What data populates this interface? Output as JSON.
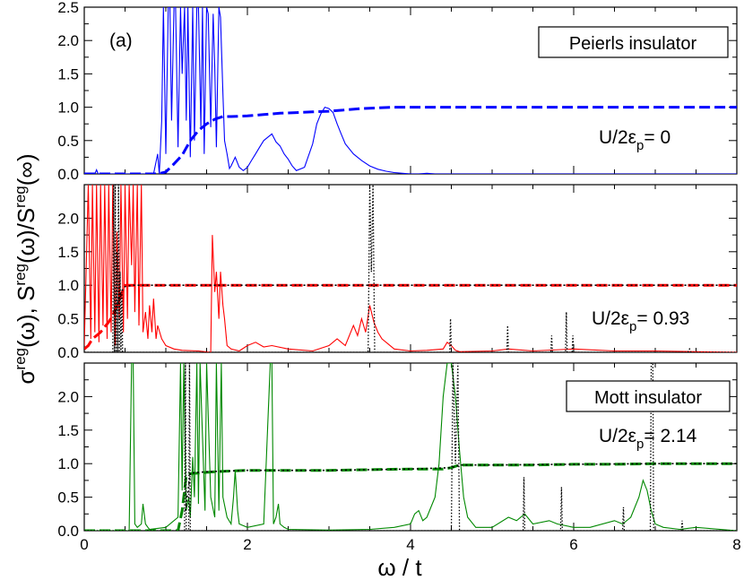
{
  "panel_tag": "(a)",
  "x_axis_label": "ω / t",
  "y_axis_label_parts": {
    "sigma": "σ",
    "reg1": "reg",
    "omega1": "(ω), S",
    "reg2": "reg",
    "omega2": "(ω)/S",
    "reg3": "reg",
    "inf": "(∞)"
  },
  "colors": {
    "panel1": "#0000ff",
    "panel2": "#ff0000",
    "panel3": "#008800",
    "reference": "#000000"
  },
  "chart_data": [
    {
      "type": "line",
      "title": "",
      "legend_box": "Peierls insulator",
      "annotation": {
        "prefix": "U/2ε",
        "sub": "p",
        "suffix": "= 0"
      },
      "xlim": [
        0,
        8
      ],
      "ylim": [
        0,
        2.5
      ],
      "x_ticks": [
        "0",
        "2",
        "4",
        "6",
        "8"
      ],
      "y_ticks": [
        "0.0",
        "0.5",
        "1.0",
        "1.5",
        "2.0",
        "2.5"
      ],
      "series": [
        {
          "style": "solid",
          "color": "#0000ff",
          "x": [
            0,
            0.13,
            0.15,
            0.17,
            0.5,
            0.85,
            0.9,
            0.92,
            0.95,
            0.97,
            1.0,
            1.03,
            1.05,
            1.07,
            1.1,
            1.12,
            1.15,
            1.18,
            1.2,
            1.23,
            1.25,
            1.27,
            1.3,
            1.33,
            1.35,
            1.38,
            1.4,
            1.43,
            1.45,
            1.47,
            1.5,
            1.52,
            1.55,
            1.58,
            1.6,
            1.62,
            1.65,
            1.67,
            1.7,
            1.72,
            1.75,
            1.78,
            1.8,
            1.85,
            1.9,
            1.95,
            2.0,
            2.05,
            2.1,
            2.15,
            2.2,
            2.25,
            2.3,
            2.35,
            2.4,
            2.45,
            2.5,
            2.55,
            2.6,
            2.7,
            2.8,
            2.85,
            2.9,
            2.95,
            3.0,
            3.05,
            3.1,
            3.15,
            3.2,
            3.3,
            3.4,
            3.5,
            3.6,
            3.7,
            3.8,
            3.9,
            4.0,
            4.1,
            4.2,
            4.3,
            4.5,
            4.8,
            8
          ],
          "y": [
            0,
            0,
            0.06,
            0,
            0,
            0,
            0.3,
            0,
            0.8,
            2.5,
            0.3,
            2.5,
            2.5,
            0.8,
            2.5,
            2.5,
            0.4,
            2.5,
            1.5,
            2.5,
            0.8,
            2.5,
            0.25,
            2.5,
            0.5,
            2.5,
            2.5,
            0.7,
            2.5,
            0.3,
            2.5,
            2.4,
            0.7,
            2.4,
            1.6,
            0.4,
            2.5,
            2.35,
            1.2,
            0.5,
            0.3,
            0.08,
            0.12,
            0.25,
            0.1,
            0.05,
            0.1,
            0.2,
            0.3,
            0.4,
            0.5,
            0.55,
            0.6,
            0.48,
            0.42,
            0.3,
            0.22,
            0.12,
            0.05,
            0.1,
            0.45,
            0.75,
            0.9,
            1.0,
            0.98,
            0.92,
            0.75,
            0.6,
            0.45,
            0.3,
            0.2,
            0.12,
            0.07,
            0.04,
            0.02,
            0.01,
            0,
            0,
            0.01,
            0,
            0,
            0,
            0
          ]
        },
        {
          "style": "dashed",
          "color": "#0000ff",
          "x": [
            0,
            0.9,
            1.0,
            1.1,
            1.2,
            1.3,
            1.4,
            1.5,
            1.6,
            1.7,
            1.8,
            2.0,
            2.2,
            2.4,
            2.6,
            2.8,
            3.0,
            3.2,
            3.4,
            3.6,
            3.8,
            4.0,
            5.0,
            6.0,
            7.0,
            8.0
          ],
          "y": [
            0,
            0,
            0.03,
            0.15,
            0.28,
            0.5,
            0.65,
            0.75,
            0.82,
            0.86,
            0.86,
            0.87,
            0.89,
            0.91,
            0.92,
            0.93,
            0.94,
            0.96,
            0.98,
            0.99,
            1.0,
            1.0,
            1.0,
            1.0,
            1.0,
            1.0
          ]
        }
      ]
    },
    {
      "type": "line",
      "title": "",
      "annotation": {
        "prefix": "U/2ε",
        "sub": "p",
        "suffix": "= 0.93"
      },
      "xlim": [
        0,
        8
      ],
      "ylim": [
        0,
        2.5
      ],
      "x_ticks": [
        "0",
        "2",
        "4",
        "6",
        "8"
      ],
      "y_ticks": [
        "0.0",
        "0.5",
        "1.0",
        "1.5",
        "2.0"
      ],
      "series": [
        {
          "style": "solid",
          "color": "#ff0000",
          "x": [
            0,
            0.05,
            0.08,
            0.1,
            0.13,
            0.15,
            0.18,
            0.2,
            0.23,
            0.25,
            0.28,
            0.3,
            0.33,
            0.35,
            0.38,
            0.4,
            0.43,
            0.45,
            0.48,
            0.5,
            0.53,
            0.55,
            0.58,
            0.6,
            0.62,
            0.65,
            0.67,
            0.7,
            0.72,
            0.75,
            0.78,
            0.8,
            0.83,
            0.85,
            0.88,
            0.9,
            0.95,
            1.0,
            1.1,
            1.2,
            1.4,
            1.55,
            1.57,
            1.6,
            1.62,
            1.65,
            1.67,
            1.7,
            1.72,
            1.75,
            1.8,
            1.9,
            2.0,
            2.1,
            2.2,
            2.3,
            2.5,
            2.8,
            3.0,
            3.1,
            3.2,
            3.3,
            3.35,
            3.4,
            3.45,
            3.5,
            3.55,
            3.6,
            3.65,
            3.7,
            3.8,
            4.0,
            4.2,
            4.4,
            4.45,
            4.5,
            4.55,
            4.6,
            5.0,
            5.2,
            5.5,
            6.0,
            6.5,
            7.0,
            7.5,
            8.0
          ],
          "y": [
            0.1,
            2.5,
            0.2,
            2.5,
            0.3,
            2.5,
            0.15,
            2.5,
            0.4,
            2.5,
            0.2,
            2.5,
            0.3,
            2.5,
            0.1,
            1.8,
            0.5,
            2.5,
            0.3,
            2.5,
            0.5,
            2.5,
            1.3,
            2.5,
            0.6,
            2.5,
            0.4,
            2.5,
            0.3,
            0.6,
            0.2,
            0.7,
            0.3,
            0.8,
            0.2,
            0.4,
            0.2,
            0.1,
            0.05,
            0.03,
            0.02,
            0.0,
            1.75,
            0.9,
            1.2,
            0.5,
            1.2,
            0.7,
            0.5,
            0.1,
            0.05,
            0.02,
            0.1,
            0.15,
            0.08,
            0.1,
            0.05,
            0.02,
            0.1,
            0.2,
            0.1,
            0.4,
            0.25,
            0.5,
            0.3,
            0.7,
            0.45,
            0.3,
            0.2,
            0.15,
            0.05,
            0.02,
            0.03,
            0.05,
            0.15,
            0.1,
            0.03,
            0.01,
            0.02,
            0.05,
            0.02,
            0.05,
            0.02,
            0.02,
            0.01,
            0
          ]
        },
        {
          "style": "dashed",
          "color": "#ff0000",
          "x": [
            0,
            0.05,
            0.1,
            0.15,
            0.2,
            0.25,
            0.3,
            0.35,
            0.4,
            0.45,
            0.5,
            0.6,
            0.8,
            1.0,
            2.0,
            3.0,
            4.0,
            5.0,
            6.0,
            7.0,
            8.0
          ],
          "y": [
            0.05,
            0.1,
            0.2,
            0.25,
            0.3,
            0.38,
            0.45,
            0.55,
            0.7,
            0.85,
            1.0,
            1.0,
            1.0,
            1.0,
            1.0,
            1.0,
            1.0,
            1.0,
            1.0,
            1.0,
            1.0
          ]
        },
        {
          "style": "dotted",
          "color": "#000000",
          "x": [
            0,
            0.35,
            0.36,
            0.37,
            0.38,
            0.39,
            0.4,
            0.41,
            0.42,
            0.43,
            0.44,
            0.45,
            0.46,
            0.47,
            0.5,
            3.48,
            3.5,
            3.52,
            3.54,
            3.56,
            4.48,
            4.49,
            4.5,
            4.51,
            5.18,
            5.19,
            5.2,
            5.21,
            5.72,
            5.73,
            5.74,
            5.75,
            5.9,
            5.91,
            5.92,
            5.93,
            5.98,
            5.99,
            6.0,
            6.01,
            7.4,
            7.42,
            7.44,
            8
          ],
          "y": [
            0,
            0,
            2.5,
            0,
            2.5,
            0,
            1.5,
            0,
            2.5,
            0,
            1.2,
            0,
            0.9,
            0,
            0,
            0,
            2.5,
            1.2,
            2.5,
            0,
            0,
            0.5,
            0,
            0,
            0,
            0.4,
            0,
            0,
            0,
            0.25,
            0,
            0,
            0,
            0.6,
            0,
            0,
            0,
            0.25,
            0,
            0,
            0,
            0.05,
            0,
            0
          ]
        },
        {
          "style": "dotted-flat",
          "color": "#000000",
          "x": [
            0.38,
            0.45,
            0.5,
            0.6,
            1.0,
            2.0,
            3.0,
            4.0,
            5.0,
            6.0,
            7.0,
            8.0
          ],
          "y": [
            0.6,
            0.9,
            0.98,
            1.0,
            1.0,
            1.0,
            1.0,
            1.0,
            1.0,
            1.0,
            1.0,
            1.0
          ]
        }
      ]
    },
    {
      "type": "line",
      "title": "",
      "legend_box": "Mott insulator",
      "annotation": {
        "prefix": "U/2ε",
        "sub": "p",
        "suffix": "= 2.14"
      },
      "xlim": [
        0,
        8
      ],
      "ylim": [
        0,
        2.5
      ],
      "x_ticks": [
        "0",
        "2",
        "4",
        "6",
        "8"
      ],
      "y_ticks": [
        "0.0",
        "0.5",
        "1.0",
        "1.5",
        "2.0"
      ],
      "series": [
        {
          "style": "solid",
          "color": "#008800",
          "x": [
            0,
            0.55,
            0.58,
            0.6,
            0.62,
            0.65,
            0.7,
            0.72,
            0.75,
            0.78,
            0.8,
            1.0,
            1.15,
            1.18,
            1.2,
            1.22,
            1.25,
            1.28,
            1.3,
            1.33,
            1.35,
            1.38,
            1.4,
            1.42,
            1.45,
            1.48,
            1.5,
            1.55,
            1.6,
            1.62,
            1.65,
            1.68,
            1.7,
            1.75,
            1.8,
            1.83,
            1.85,
            1.88,
            1.9,
            2.0,
            2.2,
            2.28,
            2.3,
            2.32,
            2.35,
            2.38,
            2.4,
            2.45,
            2.5,
            3.0,
            3.5,
            3.8,
            4.0,
            4.05,
            4.1,
            4.15,
            4.2,
            4.3,
            4.35,
            4.4,
            4.45,
            4.5,
            4.55,
            4.6,
            4.65,
            4.7,
            4.8,
            5.0,
            5.2,
            5.3,
            5.4,
            5.5,
            5.7,
            5.8,
            6.0,
            6.2,
            6.5,
            6.6,
            6.7,
            6.8,
            6.85,
            6.9,
            6.95,
            7.0,
            7.1,
            7.3,
            7.5,
            8.0
          ],
          "y": [
            0,
            0,
            2.5,
            2.5,
            0.1,
            0.05,
            0.1,
            0.4,
            0.1,
            0.05,
            0.02,
            0.05,
            0.2,
            2.5,
            0.6,
            2.5,
            0.3,
            0.5,
            0.2,
            1.1,
            0.5,
            2.5,
            0.4,
            2.5,
            1.4,
            0.3,
            2.5,
            0.5,
            0.2,
            2.5,
            0.3,
            2.5,
            0.5,
            0.2,
            0.1,
            0.5,
            0.9,
            0.3,
            0.1,
            0.05,
            0.1,
            2.5,
            2.5,
            0.1,
            0.2,
            0.4,
            0.1,
            0.05,
            0.02,
            0.01,
            0.02,
            0.05,
            0.1,
            0.25,
            0.3,
            0.15,
            0.2,
            0.5,
            1.0,
            2.0,
            2.5,
            2.5,
            2.0,
            1.2,
            0.5,
            0.2,
            0.05,
            0.05,
            0.2,
            0.15,
            0.25,
            0.1,
            0.15,
            0.1,
            0.05,
            0.05,
            0.15,
            0.1,
            0.2,
            0.5,
            0.75,
            0.6,
            0.3,
            0.1,
            0.05,
            0.02,
            0.05,
            0
          ]
        },
        {
          "style": "dashed",
          "color": "#008800",
          "x": [
            0,
            1.15,
            1.2,
            1.25,
            1.3,
            1.4,
            1.6,
            1.8,
            2.0,
            2.5,
            3.0,
            3.5,
            4.0,
            4.4,
            4.5,
            4.6,
            5.0,
            5.5,
            6.0,
            6.5,
            7.0,
            7.5,
            8.0
          ],
          "y": [
            0,
            0,
            0.3,
            0.82,
            0.85,
            0.86,
            0.88,
            0.89,
            0.9,
            0.9,
            0.9,
            0.91,
            0.92,
            0.92,
            0.94,
            0.98,
            0.98,
            0.98,
            0.99,
            0.99,
            1.0,
            1.0,
            1.0
          ]
        },
        {
          "style": "dotted",
          "color": "#000000",
          "x": [
            0,
            1.23,
            1.24,
            1.25,
            1.26,
            1.28,
            1.29,
            1.3,
            1.31,
            4.5,
            4.52,
            4.55,
            4.58,
            4.6,
            5.38,
            5.39,
            5.4,
            5.41,
            5.84,
            5.85,
            5.86,
            5.87,
            6.6,
            6.61,
            6.62,
            6.63,
            6.94,
            6.95,
            6.97,
            6.98,
            7.32,
            7.33,
            7.34,
            7.35,
            8
          ],
          "y": [
            0,
            0,
            2.5,
            0,
            0,
            0,
            2.5,
            0,
            0,
            0,
            2.5,
            1.0,
            2.5,
            0,
            0,
            0.8,
            0,
            0,
            0,
            0.65,
            0,
            0,
            0,
            0.35,
            0,
            0,
            0,
            2.5,
            2.5,
            0,
            0,
            0.15,
            0,
            0,
            0
          ]
        },
        {
          "style": "dotted-flat",
          "color": "#000000",
          "x": [
            1.24,
            1.3,
            1.5,
            2.0,
            3.0,
            4.0,
            4.5,
            4.6,
            5.0,
            6.0,
            7.0,
            8.0
          ],
          "y": [
            0.3,
            0.86,
            0.88,
            0.9,
            0.9,
            0.92,
            0.94,
            0.98,
            0.98,
            0.99,
            1.0,
            1.0
          ]
        }
      ]
    }
  ]
}
